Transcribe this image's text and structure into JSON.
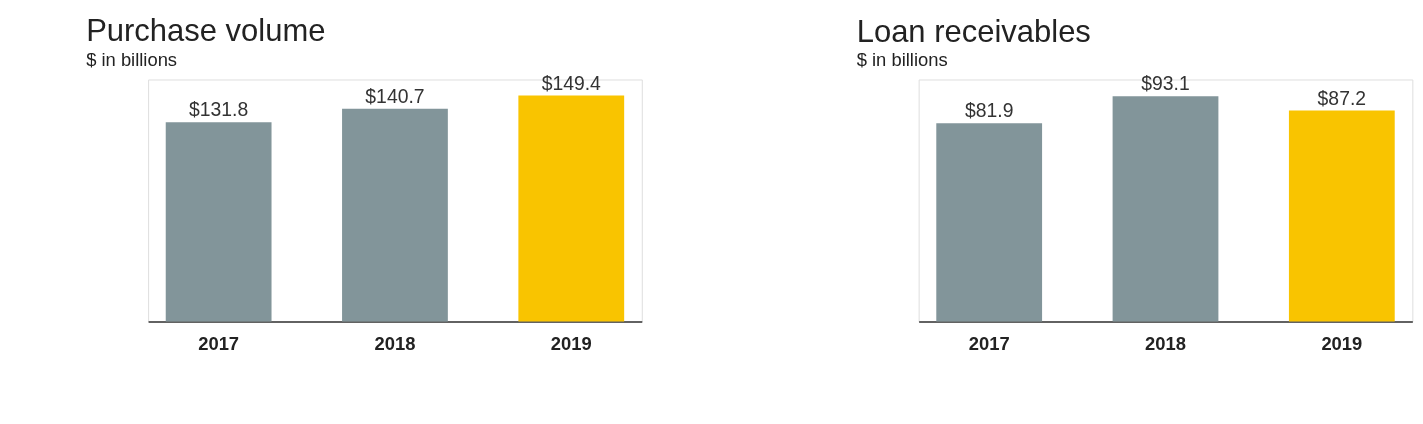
{
  "chart_data": [
    {
      "type": "bar",
      "title": "Purchase volume",
      "subtitle": "$ in billions",
      "categories": [
        "2017",
        "2018",
        "2019"
      ],
      "values": [
        131.8,
        140.7,
        149.4
      ],
      "colors": [
        "#82959a",
        "#82959a",
        "#f9c400"
      ],
      "value_labels": [
        "$131.8",
        "$140.7",
        "$149.4"
      ],
      "grid": false
    },
    {
      "type": "bar",
      "title": "Loan receivables",
      "subtitle": "$ in billions",
      "categories": [
        "2017",
        "2018",
        "2019"
      ],
      "values": [
        81.9,
        93.1,
        87.2
      ],
      "colors": [
        "#82959a",
        "#82959a",
        "#f9c400"
      ],
      "value_labels": [
        "$81.9",
        "$93.1",
        "$87.2"
      ],
      "grid": false
    }
  ]
}
